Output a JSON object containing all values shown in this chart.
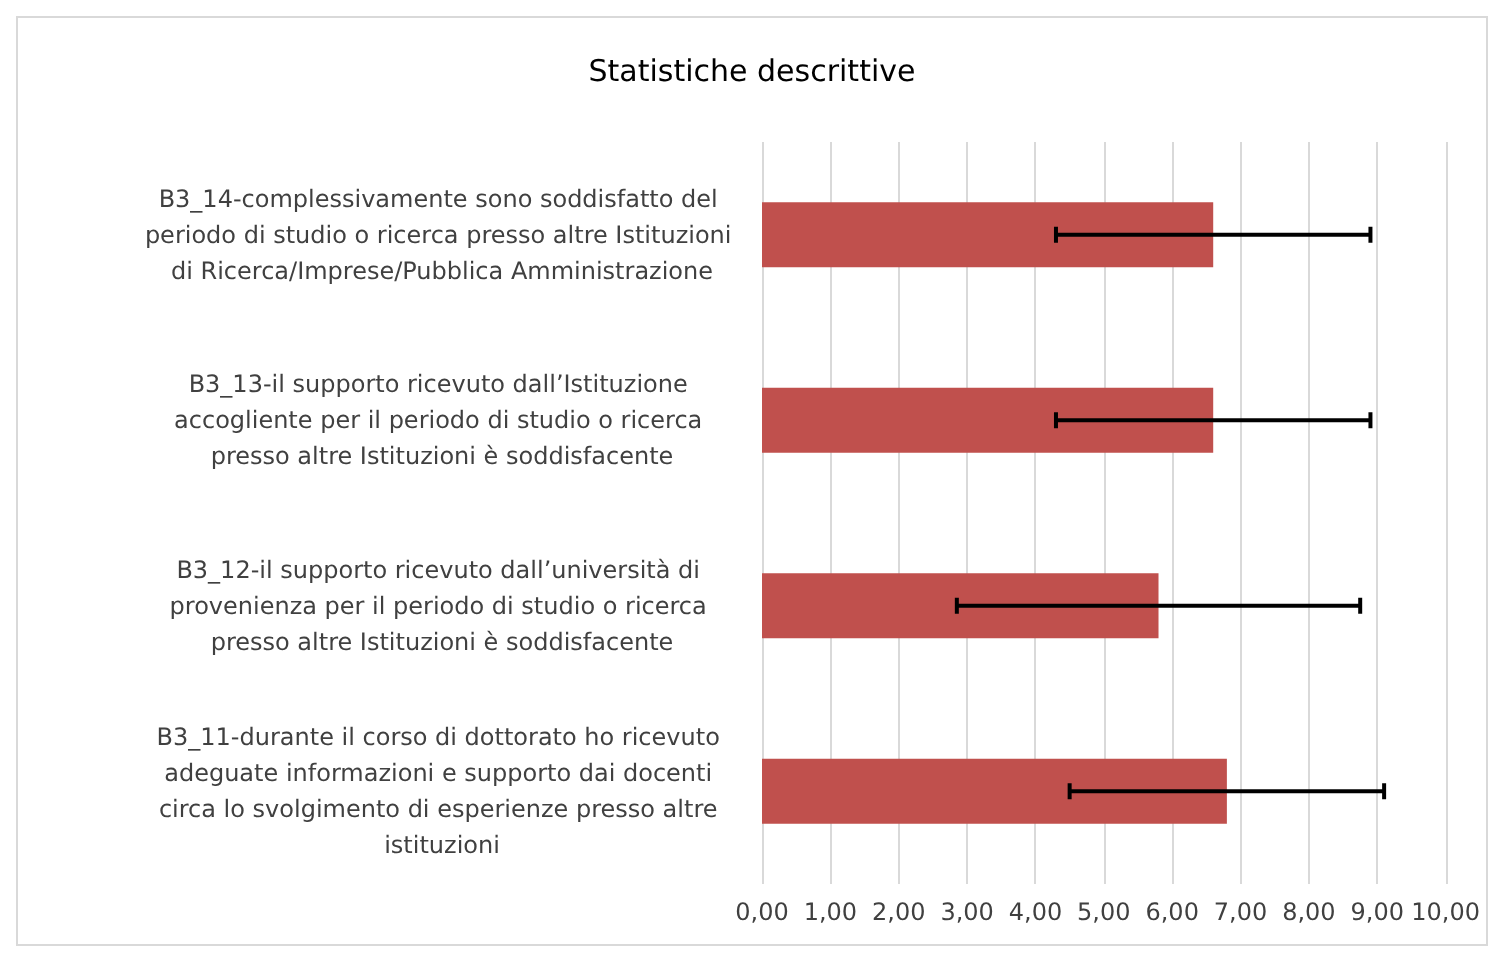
{
  "chart_data": {
    "type": "bar",
    "orientation": "horizontal",
    "title": "Statistiche descrittive",
    "categories": [
      "B3_14-complessivamente sono soddisfatto del periodo di studio o ricerca presso altre Istituzioni di Ricerca/Imprese/Pubblica Amministrazione",
      "B3_13-il supporto ricevuto dall’Istituzione accogliente per il periodo di studio o ricerca presso altre Istituzioni è soddisfacente",
      "B3_12-il supporto ricevuto dall’università di provenienza per il periodo di studio o ricerca presso altre Istituzioni è soddisfacente",
      "B3_11-durante il corso di dottorato ho ricevuto adeguate informazioni e supporto dai docenti circa lo svolgimento di esperienze presso altre istituzioni"
    ],
    "values": [
      6.6,
      6.6,
      5.8,
      6.8
    ],
    "errors": [
      2.3,
      2.3,
      2.95,
      2.3
    ],
    "color": "#c0504d",
    "xlim": [
      0,
      10
    ],
    "xticks": [
      {
        "value": 0,
        "label": "0,00"
      },
      {
        "value": 1,
        "label": "1,00"
      },
      {
        "value": 2,
        "label": "2,00"
      },
      {
        "value": 3,
        "label": "3,00"
      },
      {
        "value": 4,
        "label": "4,00"
      },
      {
        "value": 5,
        "label": "5,00"
      },
      {
        "value": 6,
        "label": "6,00"
      },
      {
        "value": 7,
        "label": "7,00"
      },
      {
        "value": 8,
        "label": "8,00"
      },
      {
        "value": 9,
        "label": "9,00"
      },
      {
        "value": 10,
        "label": "10,00"
      }
    ],
    "grid": "x"
  }
}
